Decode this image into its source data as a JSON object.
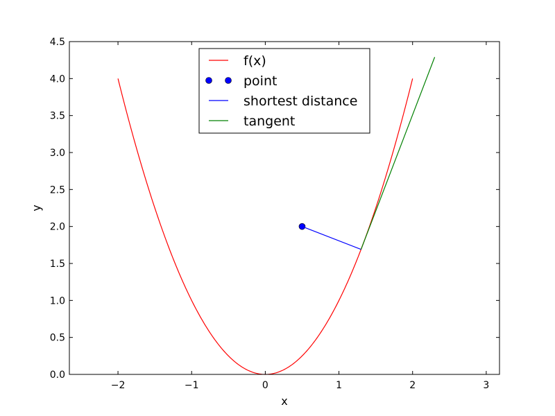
{
  "chart_data": {
    "type": "line",
    "xlabel": "x",
    "ylabel": "y",
    "xlim": [
      -2.66,
      3.18
    ],
    "ylim": [
      0.0,
      4.5
    ],
    "x_ticks": [
      -2,
      -1,
      0,
      1,
      2,
      3
    ],
    "x_tick_labels": [
      "−2",
      "−1",
      "0",
      "1",
      "2",
      "3"
    ],
    "y_ticks": [
      0.0,
      0.5,
      1.0,
      1.5,
      2.0,
      2.5,
      3.0,
      3.5,
      4.0,
      4.5
    ],
    "y_tick_labels": [
      "0.0",
      "0.5",
      "1.0",
      "1.5",
      "2.0",
      "2.5",
      "3.0",
      "3.5",
      "4.0",
      "4.5"
    ],
    "grid": false,
    "legend_position": "top-center",
    "series": [
      {
        "name": "f(x)",
        "kind": "function",
        "function": "x^2",
        "x_range": [
          -2,
          2
        ],
        "color": "#ff0000"
      },
      {
        "name": "point",
        "kind": "marker",
        "x": [
          0.5
        ],
        "y": [
          2.0
        ],
        "color": "#0000ff"
      },
      {
        "name": "shortest distance",
        "kind": "line",
        "x": [
          0.5,
          1.3
        ],
        "y": [
          2.0,
          1.69
        ],
        "color": "#0000ff"
      },
      {
        "name": "tangent",
        "kind": "line",
        "x": [
          1.3,
          2.3
        ],
        "y": [
          1.69,
          4.29
        ],
        "color": "#008000"
      }
    ]
  }
}
